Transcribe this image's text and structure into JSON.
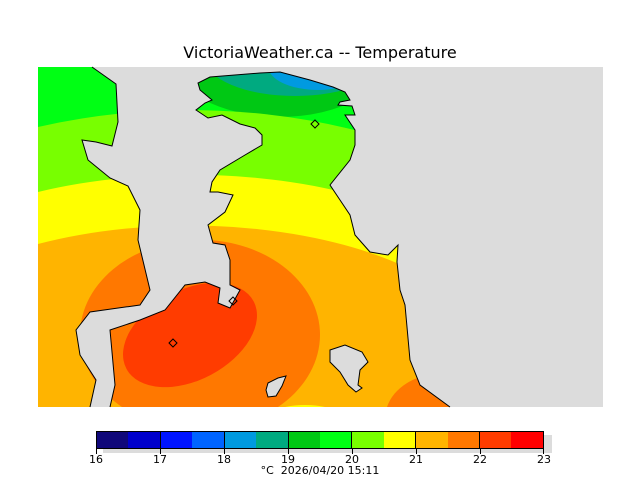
{
  "title": "VictoriaWeather.ca -- Temperature",
  "colorbar": {
    "colors": [
      "#10087a",
      "#0000cc",
      "#0014ff",
      "#0064ff",
      "#009ae0",
      "#00aa80",
      "#00c814",
      "#00ff14",
      "#78ff00",
      "#ffff00",
      "#ffb400",
      "#ff7800",
      "#ff3c00",
      "#ff0000"
    ],
    "ticks": [
      "16",
      "17",
      "18",
      "19",
      "20",
      "21",
      "22",
      "23"
    ],
    "units": "°C",
    "timestamp": "2026/04/20 15:11"
  }
}
